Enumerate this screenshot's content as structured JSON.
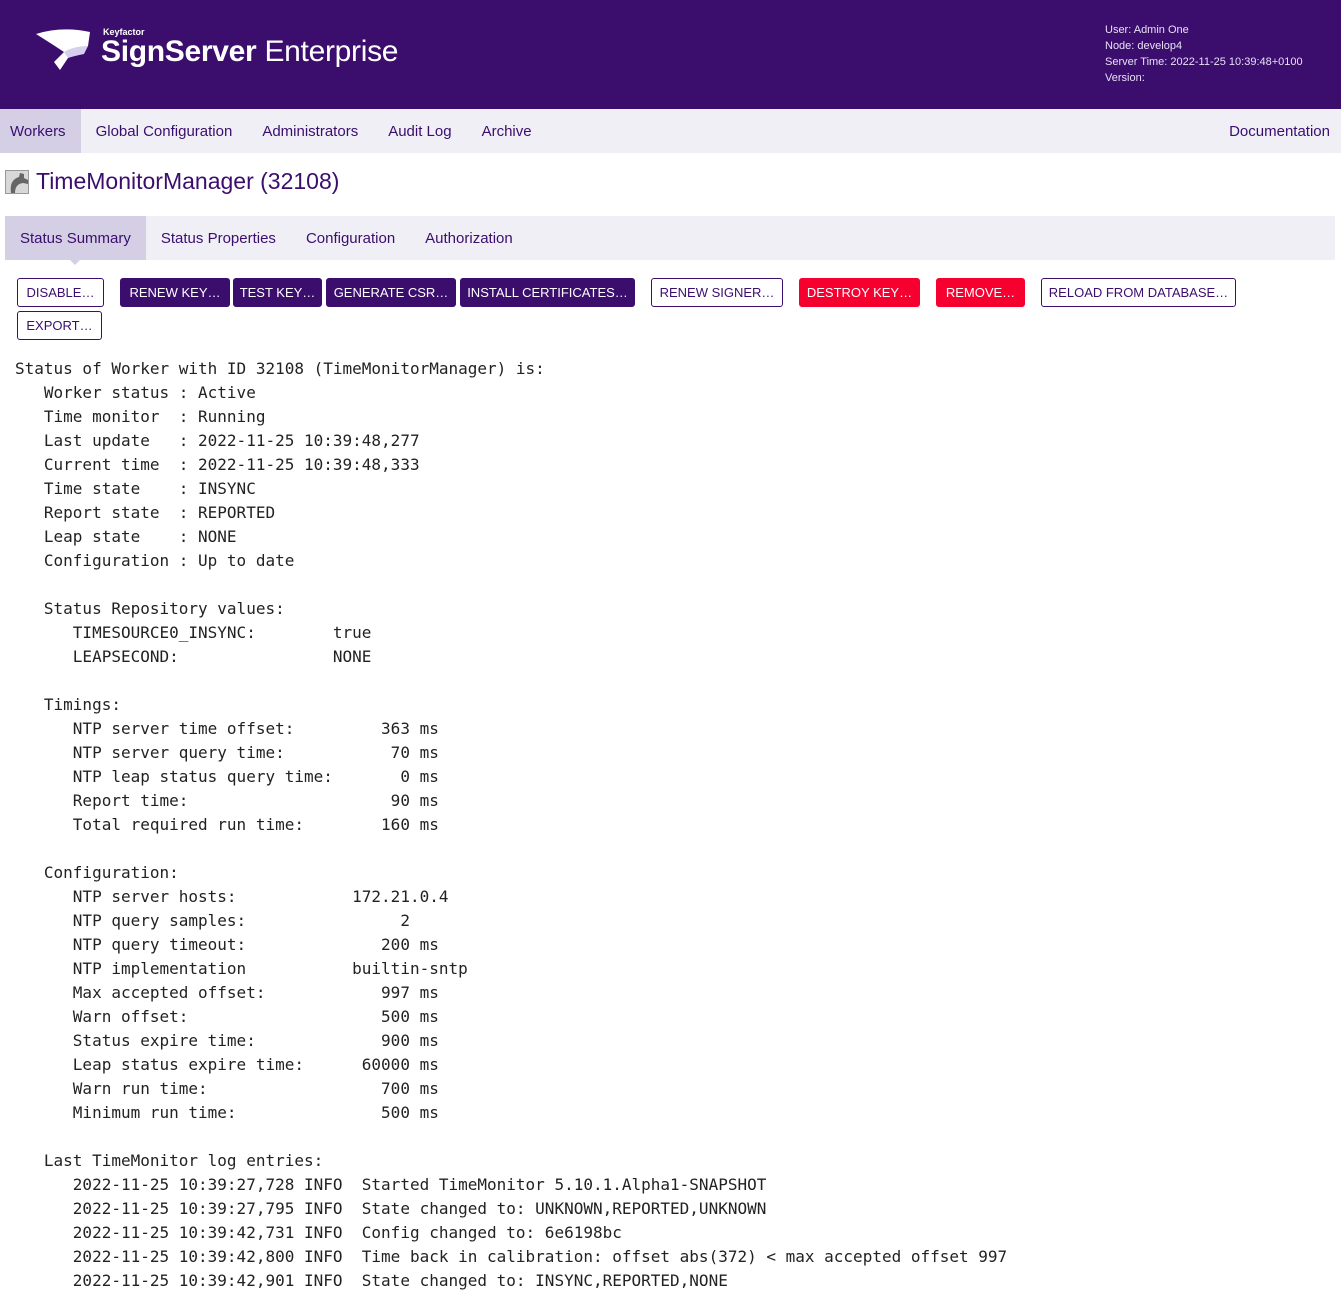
{
  "header": {
    "brand_small": "Keyfactor",
    "brand_bold": "SignServer",
    "brand_light": " Enterprise",
    "user": "User: Admin One",
    "node": "Node: develop4",
    "server_time": "Server Time: 2022-11-25 10:39:48+0100",
    "version": "Version: "
  },
  "nav": {
    "items": [
      "Workers",
      "Global Configuration",
      "Administrators",
      "Audit Log",
      "Archive"
    ],
    "documentation": "Documentation"
  },
  "page": {
    "title": "TimeMonitorManager (32108)",
    "icon": "worker-gear-icon"
  },
  "tabs": [
    "Status Summary",
    "Status Properties",
    "Configuration",
    "Authorization"
  ],
  "buttons": [
    "DISABLE…",
    "RENEW KEY…",
    "TEST KEY…",
    "GENERATE CSR…",
    "INSTALL CERTIFICATES…",
    "RENEW SIGNER…",
    "DESTROY KEY…",
    "REMOVE…",
    "RELOAD FROM DATABASE…",
    "EXPORT…"
  ],
  "colors": {
    "brand": "#3b0e6e",
    "danger": "#f5002f",
    "nav_bg": "#efeff5",
    "active_tab": "#d4cfe4"
  },
  "status_lines": [
    "Status of Worker with ID 32108 (TimeMonitorManager) is:",
    "   Worker status : Active",
    "   Time monitor  : Running",
    "   Last update   : 2022-11-25 10:39:48,277",
    "   Current time  : 2022-11-25 10:39:48,333",
    "   Time state    : INSYNC",
    "   Report state  : REPORTED",
    "   Leap state    : NONE",
    "   Configuration : Up to date",
    "",
    "   Status Repository values:",
    "      TIMESOURCE0_INSYNC:        true",
    "      LEAPSECOND:                NONE",
    "",
    "   Timings:",
    "      NTP server time offset:         363 ms",
    "      NTP server query time:           70 ms",
    "      NTP leap status query time:       0 ms",
    "      Report time:                     90 ms",
    "      Total required run time:        160 ms",
    "",
    "   Configuration:",
    "      NTP server hosts:            172.21.0.4",
    "      NTP query samples:                2",
    "      NTP query timeout:              200 ms",
    "      NTP implementation           builtin-sntp",
    "      Max accepted offset:            997 ms",
    "      Warn offset:                    500 ms",
    "      Status expire time:             900 ms",
    "      Leap status expire time:      60000 ms",
    "      Warn run time:                  700 ms",
    "      Minimum run time:               500 ms",
    "",
    "   Last TimeMonitor log entries:",
    "      2022-11-25 10:39:27,728 INFO  Started TimeMonitor 5.10.1.Alpha1-SNAPSHOT",
    "      2022-11-25 10:39:27,795 INFO  State changed to: UNKNOWN,REPORTED,UNKNOWN",
    "      2022-11-25 10:39:42,731 INFO  Config changed to: 6e6198bc",
    "      2022-11-25 10:39:42,800 INFO  Time back in calibration: offset abs(372) < max accepted offset 997",
    "      2022-11-25 10:39:42,901 INFO  State changed to: INSYNC,REPORTED,NONE"
  ]
}
